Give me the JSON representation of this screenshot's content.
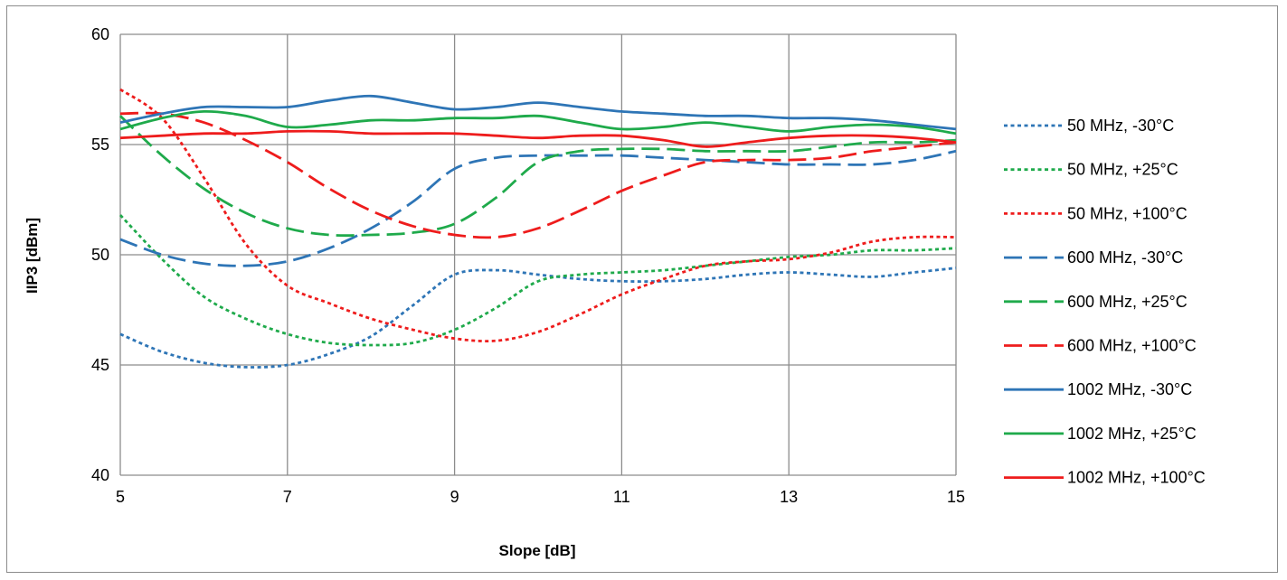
{
  "chart_data": {
    "type": "line",
    "xlabel": "Slope [dB]",
    "ylabel": "IIP3 [dBm]",
    "xlim": [
      5,
      15
    ],
    "ylim": [
      40,
      60
    ],
    "xticks": [
      5,
      7,
      9,
      11,
      13,
      15
    ],
    "yticks": [
      40,
      45,
      50,
      55,
      60
    ],
    "grid": true,
    "legend_position": "right",
    "series": [
      {
        "name": "50 MHz, -30°C",
        "color": "#2e75b6",
        "dash": "short",
        "x": [
          5,
          5.5,
          6,
          6.5,
          7,
          7.5,
          8,
          8.5,
          9,
          9.5,
          10,
          10.5,
          11,
          11.5,
          12,
          12.5,
          13,
          13.5,
          14,
          14.5,
          15
        ],
        "y": [
          46.4,
          45.6,
          45.1,
          44.9,
          45.0,
          45.5,
          46.3,
          47.7,
          49.1,
          49.3,
          49.1,
          48.9,
          48.8,
          48.8,
          48.9,
          49.1,
          49.2,
          49.1,
          49.0,
          49.2,
          49.4
        ]
      },
      {
        "name": "50 MHz, +25°C",
        "color": "#1faa4b",
        "dash": "short",
        "x": [
          5,
          5.5,
          6,
          6.5,
          7,
          7.5,
          8,
          8.5,
          9,
          9.5,
          10,
          10.5,
          11,
          11.5,
          12,
          12.5,
          13,
          13.5,
          14,
          14.5,
          15
        ],
        "y": [
          51.8,
          49.8,
          48.1,
          47.1,
          46.4,
          46.0,
          45.9,
          46.0,
          46.6,
          47.6,
          48.8,
          49.1,
          49.2,
          49.3,
          49.5,
          49.7,
          49.9,
          50.0,
          50.2,
          50.2,
          50.3
        ]
      },
      {
        "name": "50 MHz, +100°C",
        "color": "#ee1c1c",
        "dash": "short",
        "x": [
          5,
          5.5,
          6,
          6.5,
          7,
          7.5,
          8,
          8.5,
          9,
          9.5,
          10,
          10.5,
          11,
          11.5,
          12,
          12.5,
          13,
          13.5,
          14,
          14.5,
          15
        ],
        "y": [
          57.5,
          56.2,
          53.5,
          50.5,
          48.6,
          47.8,
          47.1,
          46.6,
          46.2,
          46.1,
          46.5,
          47.3,
          48.2,
          48.9,
          49.5,
          49.7,
          49.8,
          50.1,
          50.6,
          50.8,
          50.8
        ]
      },
      {
        "name": "600 MHz, -30°C",
        "color": "#2e75b6",
        "dash": "long",
        "x": [
          5,
          5.5,
          6,
          6.5,
          7,
          7.5,
          8,
          8.5,
          9,
          9.5,
          10,
          10.5,
          11,
          11.5,
          12,
          12.5,
          13,
          13.5,
          14,
          14.5,
          15
        ],
        "y": [
          50.7,
          50.0,
          49.6,
          49.5,
          49.7,
          50.3,
          51.2,
          52.4,
          53.9,
          54.4,
          54.5,
          54.5,
          54.5,
          54.4,
          54.3,
          54.2,
          54.1,
          54.1,
          54.1,
          54.3,
          54.7
        ]
      },
      {
        "name": "600 MHz, +25°C",
        "color": "#1faa4b",
        "dash": "long",
        "x": [
          5,
          5.5,
          6,
          6.5,
          7,
          7.5,
          8,
          8.5,
          9,
          9.5,
          10,
          10.5,
          11,
          11.5,
          12,
          12.5,
          13,
          13.5,
          14,
          14.5,
          15
        ],
        "y": [
          56.3,
          54.5,
          53.0,
          51.9,
          51.2,
          50.9,
          50.9,
          51.0,
          51.4,
          52.6,
          54.2,
          54.7,
          54.8,
          54.8,
          54.7,
          54.7,
          54.7,
          54.9,
          55.1,
          55.1,
          55.2
        ]
      },
      {
        "name": "600 MHz, +100°C",
        "color": "#ee1c1c",
        "dash": "long",
        "x": [
          5,
          5.5,
          6,
          6.5,
          7,
          7.5,
          8,
          8.5,
          9,
          9.5,
          10,
          10.5,
          11,
          11.5,
          12,
          12.5,
          13,
          13.5,
          14,
          14.5,
          15
        ],
        "y": [
          56.4,
          56.4,
          56.0,
          55.2,
          54.2,
          53.0,
          52.0,
          51.3,
          50.9,
          50.8,
          51.2,
          52.0,
          52.9,
          53.6,
          54.2,
          54.3,
          54.3,
          54.4,
          54.7,
          54.9,
          55.1
        ]
      },
      {
        "name": "1002 MHz, -30°C",
        "color": "#2e75b6",
        "dash": "solid",
        "x": [
          5,
          5.5,
          6,
          6.5,
          7,
          7.5,
          8,
          8.5,
          9,
          9.5,
          10,
          10.5,
          11,
          11.5,
          12,
          12.5,
          13,
          13.5,
          14,
          14.5,
          15
        ],
        "y": [
          56.0,
          56.4,
          56.7,
          56.7,
          56.7,
          57.0,
          57.2,
          56.9,
          56.6,
          56.7,
          56.9,
          56.7,
          56.5,
          56.4,
          56.3,
          56.3,
          56.2,
          56.2,
          56.1,
          55.9,
          55.7
        ]
      },
      {
        "name": "1002 MHz, +25°C",
        "color": "#1faa4b",
        "dash": "solid",
        "x": [
          5,
          5.5,
          6,
          6.5,
          7,
          7.5,
          8,
          8.5,
          9,
          9.5,
          10,
          10.5,
          11,
          11.5,
          12,
          12.5,
          13,
          13.5,
          14,
          14.5,
          15
        ],
        "y": [
          55.7,
          56.2,
          56.5,
          56.3,
          55.8,
          55.9,
          56.1,
          56.1,
          56.2,
          56.2,
          56.3,
          56.0,
          55.7,
          55.8,
          56.0,
          55.8,
          55.6,
          55.8,
          55.9,
          55.8,
          55.5
        ]
      },
      {
        "name": "1002 MHz, +100°C",
        "color": "#ee1c1c",
        "dash": "solid",
        "x": [
          5,
          5.5,
          6,
          6.5,
          7,
          7.5,
          8,
          8.5,
          9,
          9.5,
          10,
          10.5,
          11,
          11.5,
          12,
          12.5,
          13,
          13.5,
          14,
          14.5,
          15
        ],
        "y": [
          55.3,
          55.4,
          55.5,
          55.5,
          55.6,
          55.6,
          55.5,
          55.5,
          55.5,
          55.4,
          55.3,
          55.4,
          55.4,
          55.2,
          54.9,
          55.1,
          55.3,
          55.4,
          55.4,
          55.3,
          55.1
        ]
      }
    ]
  }
}
